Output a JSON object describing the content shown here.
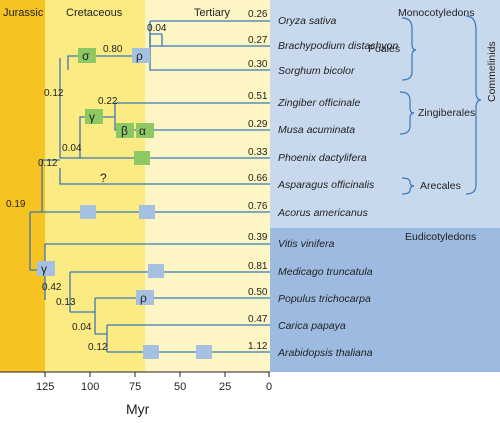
{
  "eras": [
    "Jurassic",
    "Cretaceous",
    "Tertiary"
  ],
  "axis": {
    "title": "Myr",
    "ticks": [
      "125",
      "100",
      "75",
      "50",
      "25",
      "0"
    ]
  },
  "groups": {
    "monocots": "Monocotyledons",
    "eudicots": "Eudicotyledons",
    "poales": "Poales",
    "zingiberales": "Zingiberales",
    "arecales": "Arecales",
    "commelinids": "Commelinids"
  },
  "species": [
    {
      "name": "Oryza sativa",
      "rate": "0.26"
    },
    {
      "name": "Brachypodium distachyon",
      "rate": "0.27"
    },
    {
      "name": "Sorghum bicolor",
      "rate": "0.30"
    },
    {
      "name": "Zingiber officinale",
      "rate": "0.51"
    },
    {
      "name": "Musa acuminata",
      "rate": "0.29"
    },
    {
      "name": "Phoenix dactylifera",
      "rate": "0.33"
    },
    {
      "name": "Asparagus officinalis",
      "rate": "0.66"
    },
    {
      "name": "Acorus americanus",
      "rate": "0.76"
    },
    {
      "name": "Vitis vinifera",
      "rate": "0.39"
    },
    {
      "name": "Medicago truncatula",
      "rate": "0.81"
    },
    {
      "name": "Populus trichocarpa",
      "rate": "0.50"
    },
    {
      "name": "Carica papaya",
      "rate": "0.47"
    },
    {
      "name": "Arabidopsis thaliana",
      "rate": "1.12"
    }
  ],
  "node_rates": [
    "0.04",
    "0.80",
    "0.12",
    "0.22",
    "0.12",
    "0.04",
    "0.19",
    "0.42",
    "0.13",
    "0.04",
    "0.12"
  ],
  "wgd_events": [
    "σ",
    "ρ",
    "γ",
    "β",
    "α",
    "?",
    "γ",
    "ρ"
  ],
  "colors": {
    "jurassic": "#f7c321",
    "cretaceous": "#fbeb82",
    "tertiary": "#fdf6c4",
    "monocot_panel": "#c8d9ee",
    "eudicot_panel": "#9dbbe0",
    "branch": "#3a78b8",
    "monocot_box": "#8dc865",
    "eudicot_box": "#a6c0e2"
  }
}
